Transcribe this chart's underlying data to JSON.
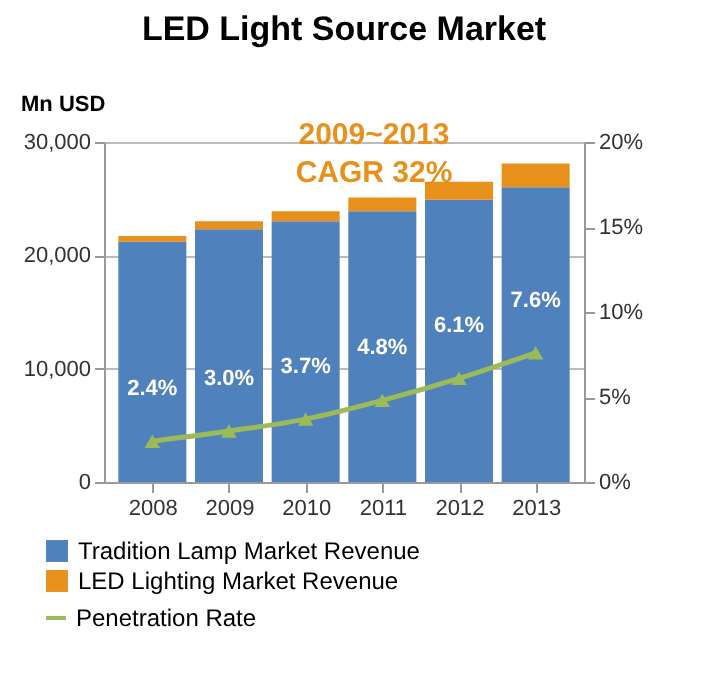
{
  "chart_data": {
    "type": "bar",
    "title": "LED Light Source Market",
    "ylabel": "Mn USD",
    "annotations": [
      "2009~2013",
      "CAGR 32%"
    ],
    "categories": [
      "2008",
      "2009",
      "2010",
      "2011",
      "2012",
      "2013"
    ],
    "stacked": true,
    "series": [
      {
        "name": "Tradition Lamp Market Revenue",
        "color": "#4f81bd",
        "values": [
          21200,
          22300,
          23000,
          23900,
          24900,
          26000
        ]
      },
      {
        "name": "LED Lighting Market Revenue",
        "color": "#e8901c",
        "values": [
          500,
          700,
          900,
          1200,
          1600,
          2100
        ]
      },
      {
        "name": "Penetration Rate",
        "type": "line",
        "axis": "y2",
        "color": "#9bbb59",
        "marker": "triangle",
        "values": [
          2.4,
          3.0,
          3.7,
          4.8,
          6.1,
          7.6
        ],
        "value_labels": [
          "2.4%",
          "3.0%",
          "3.7%",
          "4.8%",
          "6.1%",
          "7.6%"
        ]
      }
    ],
    "ylim": [
      0,
      30000
    ],
    "yticks": [
      {
        "value": 0,
        "label": "0"
      },
      {
        "value": 10000,
        "label": "10,000"
      },
      {
        "value": 20000,
        "label": "20,000"
      },
      {
        "value": 30000,
        "label": "30,000"
      }
    ],
    "y2lim": [
      0,
      20
    ],
    "y2ticks": [
      {
        "value": 0,
        "label": "0%"
      },
      {
        "value": 5,
        "label": "5%"
      },
      {
        "value": 10,
        "label": "10%"
      },
      {
        "value": 15,
        "label": "15%"
      },
      {
        "value": 20,
        "label": "20%"
      }
    ],
    "grid": "y",
    "legend": "bottom"
  }
}
